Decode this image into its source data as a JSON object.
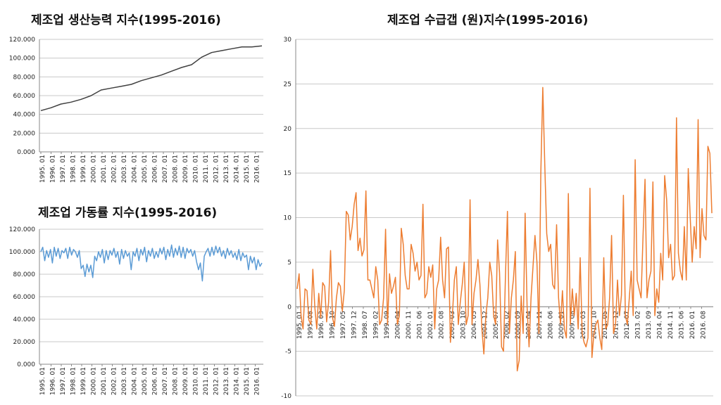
{
  "chart_data": [
    {
      "type": "line",
      "title": "제조업 생산능력 지수(1995-2016)",
      "y_ticks": [
        "0.000",
        "20.000",
        "40.000",
        "60.000",
        "80.000",
        "100.000",
        "120.000"
      ],
      "ylim": [
        0,
        120
      ],
      "x_ticks": [
        "1995. 01",
        "1996. 01",
        "1997. 01",
        "1998. 01",
        "1999. 01",
        "2000. 01",
        "2001. 01",
        "2002. 01",
        "2003. 01",
        "2004. 01",
        "2005. 01",
        "2006. 01",
        "2007. 01",
        "2008. 01",
        "2009. 01",
        "2010. 01",
        "2011. 01",
        "2012. 01",
        "2013. 01",
        "2014. 01",
        "2015. 01",
        "2016. 01"
      ],
      "series": [
        {
          "name": "생산능력",
          "color": "#404040",
          "values": [
            44,
            47,
            51,
            53,
            56,
            60,
            66,
            68,
            70,
            72,
            76,
            79,
            82,
            86,
            90,
            93,
            101,
            106,
            108,
            110,
            112,
            112,
            113
          ]
        }
      ]
    },
    {
      "type": "line",
      "title": "제조업 가동률 지수(1995-2016)",
      "y_ticks": [
        "0.000",
        "20.000",
        "40.000",
        "60.000",
        "80.000",
        "100.000",
        "120.000"
      ],
      "ylim": [
        0,
        120
      ],
      "x_ticks": [
        "1995. 01",
        "1996. 01",
        "1997. 01",
        "1998. 01",
        "1999. 01",
        "2000. 01",
        "2001. 01",
        "2002. 01",
        "2003. 01",
        "2004. 01",
        "2005. 01",
        "2006. 01",
        "2007. 01",
        "2008. 01",
        "2009. 01",
        "2010. 01",
        "2011. 01",
        "2012. 01",
        "2013. 01",
        "2014. 01",
        "2015. 01",
        "2016. 01"
      ],
      "series": [
        {
          "name": "가동률",
          "color": "#5b9bd5",
          "values": [
            100,
            104,
            92,
            101,
            95,
            102,
            90,
            104,
            96,
            103,
            94,
            101,
            99,
            103,
            94,
            104,
            97,
            102,
            100,
            95,
            101,
            85,
            88,
            78,
            89,
            82,
            88,
            77,
            96,
            92,
            100,
            95,
            102,
            90,
            101,
            93,
            101,
            97,
            103,
            95,
            100,
            89,
            102,
            94,
            101,
            96,
            99,
            84,
            100,
            96,
            103,
            92,
            102,
            97,
            104,
            91,
            101,
            96,
            103,
            94,
            100,
            95,
            103,
            98,
            104,
            93,
            102,
            96,
            106,
            95,
            103,
            97,
            105,
            95,
            104,
            94,
            103,
            99,
            102,
            96,
            101,
            91,
            84,
            90,
            74,
            96,
            100,
            103,
            96,
            104,
            97,
            105,
            99,
            104,
            96,
            101,
            94,
            103,
            97,
            101,
            95,
            99,
            93,
            102,
            92,
            99,
            95,
            97,
            84,
            96,
            90,
            95,
            84,
            93,
            87,
            90
          ]
        }
      ]
    },
    {
      "type": "line",
      "title": "제조업 수급갭 (원)지수(1995-2016)",
      "y_ticks": [
        "-10",
        "-5",
        "0",
        "5",
        "10",
        "15",
        "20",
        "25",
        "30"
      ],
      "ylim": [
        -10,
        30
      ],
      "x_ticks": [
        "1995. 01",
        "1995. 08",
        "1996. 03",
        "1996. 10",
        "1997. 05",
        "1997. 12",
        "1998. 07",
        "1999. 02",
        "1999. 09",
        "2000. 04",
        "2000. 11",
        "2001. 06",
        "2002. 01",
        "2002. 08",
        "2003. 03",
        "2003. 10",
        "2004. 05",
        "2004. 12",
        "2005. 07",
        "2006. 02",
        "2006. 09",
        "2007. 04",
        "2007. 11",
        "2008. 06",
        "2009. 01",
        "2009. 08",
        "2010. 03",
        "2010. 10",
        "2011. 05",
        "2011. 12",
        "2012. 07",
        "2013. 02",
        "2013. 09",
        "2014. 04",
        "2014. 11",
        "2015. 06",
        "2016. 01",
        "2016. 08"
      ],
      "series": [
        {
          "name": "수급갭",
          "color": "#ed7d31",
          "values": [
            2,
            3.7,
            -1,
            -2.5,
            2,
            1.8,
            -1.5,
            -2,
            4.2,
            0,
            -2.5,
            1.5,
            -1.2,
            2.7,
            2.3,
            -1.7,
            0.5,
            6.3,
            -1.2,
            -2.2,
            1,
            2.7,
            2.3,
            -0.5,
            1.8,
            10.7,
            10.3,
            7.5,
            9,
            11.5,
            12.8,
            6.3,
            7.7,
            5.7,
            6.4,
            13,
            3,
            3,
            2,
            1,
            4.5,
            3,
            -2,
            -1.5,
            1,
            8.7,
            -2,
            3.7,
            1.5,
            2.3,
            3.3,
            -2,
            -1,
            8.8,
            7,
            3.5,
            2,
            2,
            7,
            6,
            4,
            5,
            3,
            3.5,
            11.5,
            1,
            1.5,
            4.5,
            3.3,
            4.7,
            -2.5,
            2,
            3,
            7.8,
            3,
            1,
            6.5,
            6.7,
            -4,
            -1,
            3,
            4.5,
            -2,
            0.5,
            2.5,
            5,
            -2,
            -1,
            12,
            -2,
            1.5,
            3,
            5.3,
            2.5,
            -2.5,
            -5.3,
            -1,
            1,
            5,
            3.5,
            -1,
            -2,
            7.5,
            3.8,
            -4.5,
            -5,
            3.5,
            10.7,
            -3,
            1,
            3,
            6.2,
            -7.2,
            -6,
            1.2,
            -3,
            10.5,
            0,
            -4.5,
            1,
            4.5,
            8,
            5,
            -3,
            15,
            24.6,
            16,
            8.2,
            6.2,
            7,
            2.5,
            2,
            9.2,
            1,
            -2,
            1.8,
            -2.5,
            -3.5,
            12.7,
            -2,
            2,
            -1,
            1.5,
            -2.5,
            5.5,
            -3,
            -4,
            -4.5,
            -3.5,
            13.3,
            -5.7,
            -3,
            -2,
            -1.5,
            -3.5,
            -4.8,
            5.5,
            -2.5,
            -2,
            1,
            8,
            -3,
            -2,
            3,
            -1,
            1.3,
            12.5,
            -1,
            -2,
            1,
            4,
            -1,
            16.5,
            3,
            2,
            1,
            8,
            14.3,
            1,
            3,
            4,
            14,
            -1,
            2,
            0.5,
            6,
            3,
            14.7,
            12,
            5.5,
            7,
            3,
            3.5,
            21.2,
            6,
            4,
            3,
            9,
            3,
            15.5,
            10,
            5,
            9,
            6.5,
            21,
            5.5,
            11,
            8,
            7.5,
            18,
            17.2,
            10.5
          ]
        }
      ]
    }
  ]
}
